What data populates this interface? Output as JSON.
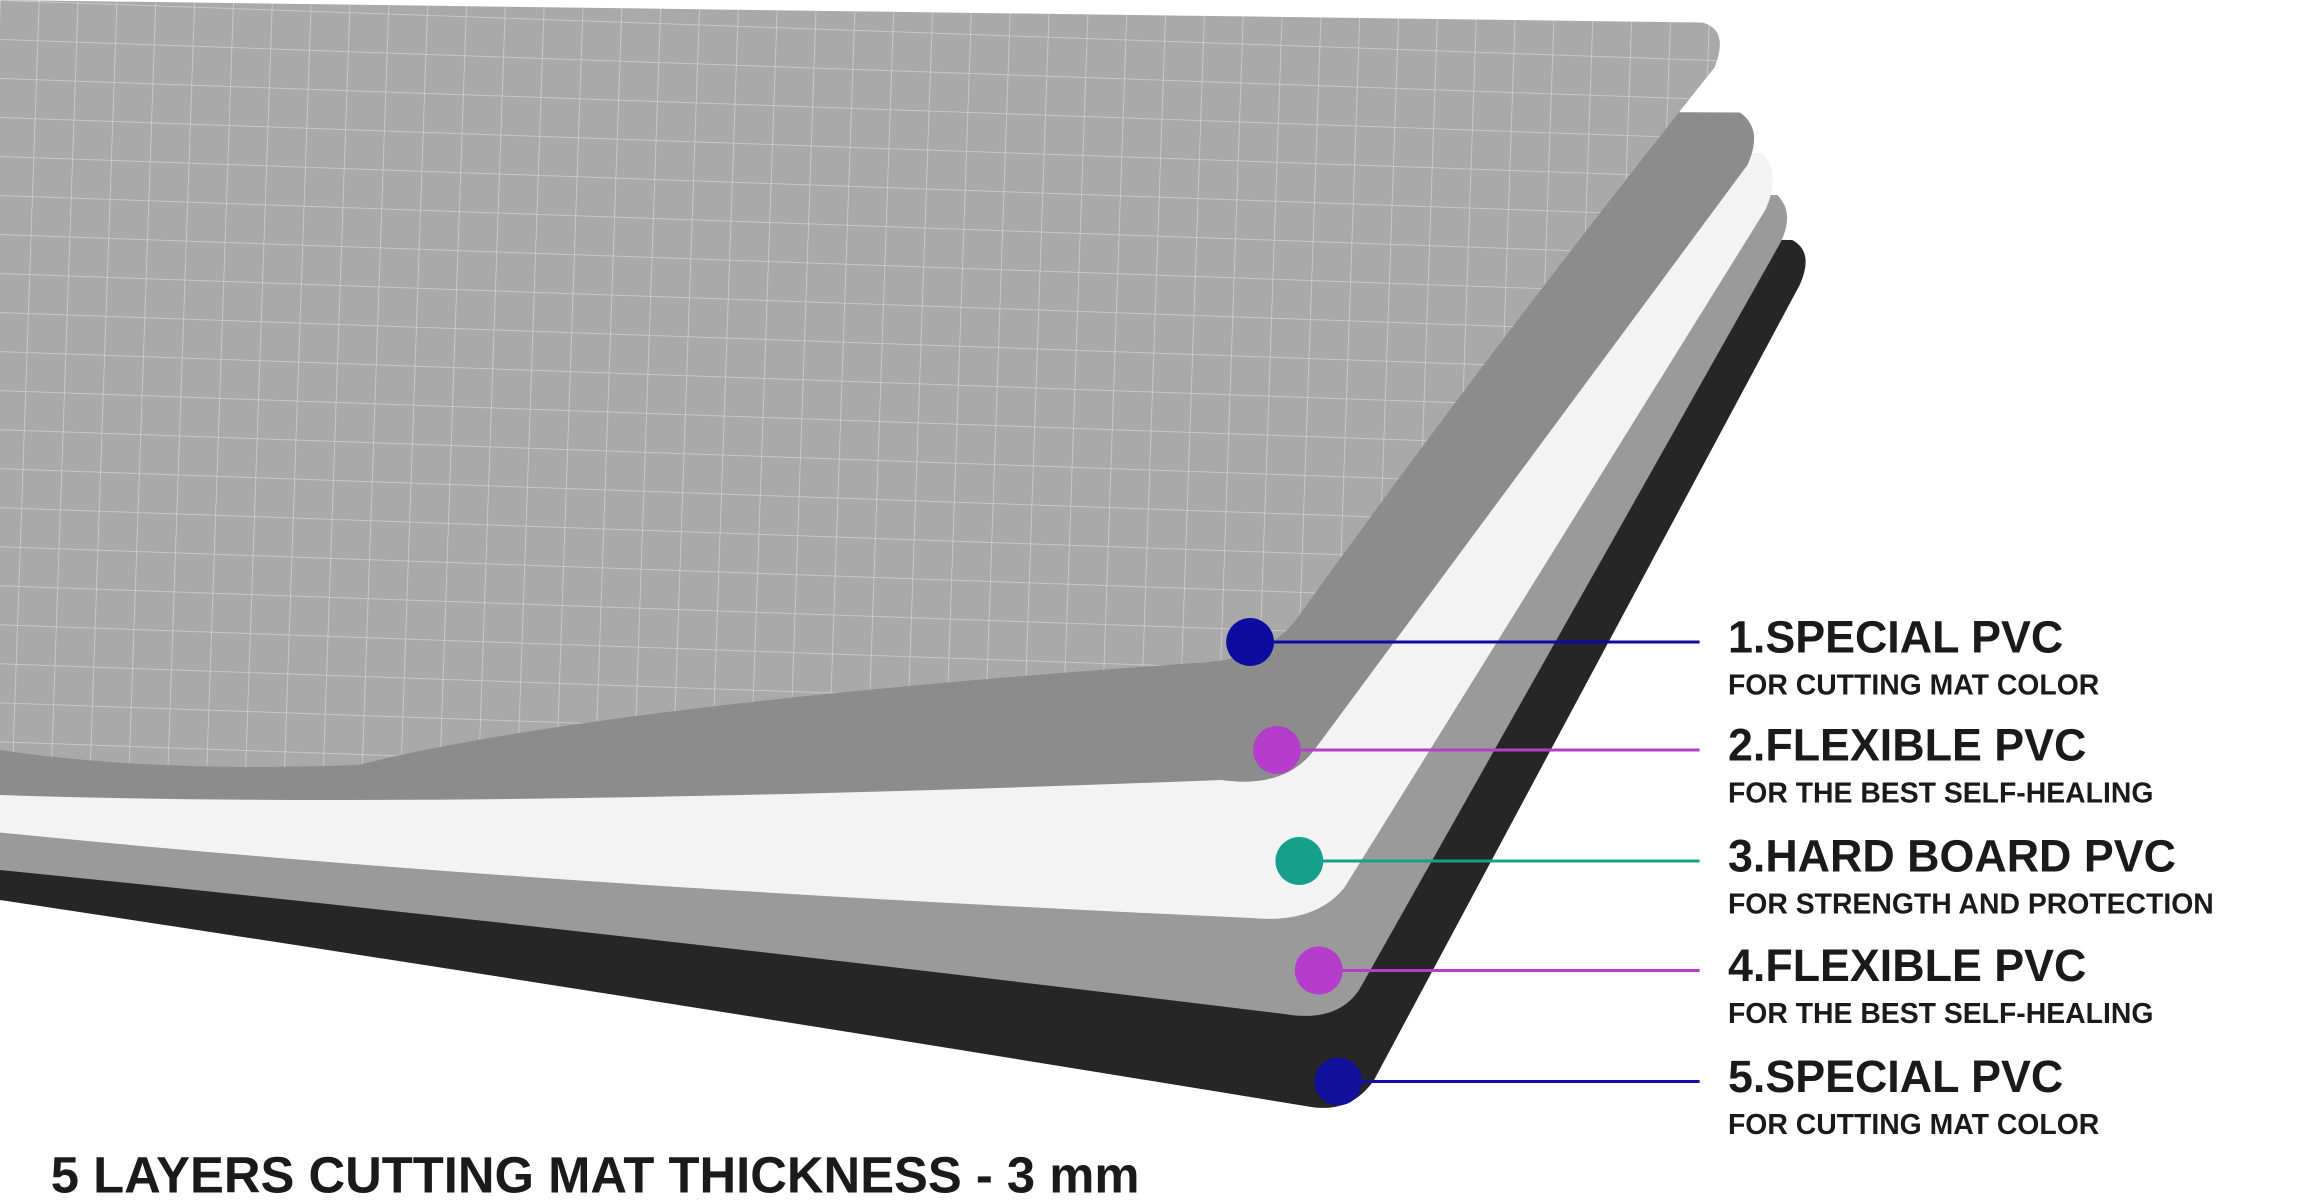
{
  "title": "5 LAYERS CUTTING MAT THICKNESS - 3 mm",
  "layers": [
    {
      "name": "1.SPECIAL PVC",
      "description": "FOR CUTTING MAT COLOR",
      "color": "#0c0ca0"
    },
    {
      "name": "2.FLEXIBLE PVC",
      "description": "FOR THE BEST SELF-HEALING",
      "color": "#b43dcc"
    },
    {
      "name": "3.HARD BOARD PVC",
      "description": "FOR STRENGTH AND PROTECTION",
      "color": "#14a08a"
    },
    {
      "name": "4.FLEXIBLE PVC",
      "description": "FOR THE BEST SELF-HEALING",
      "color": "#b43dcc"
    },
    {
      "name": "5.SPECIAL PVC",
      "description": "FOR CUTTING MAT COLOR",
      "color": "#10109a"
    }
  ]
}
